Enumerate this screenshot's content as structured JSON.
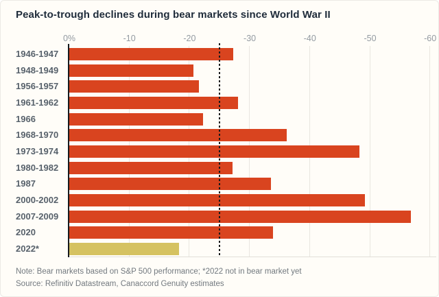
{
  "title": "Peak-to-trough declines during bear markets since World War II",
  "note": "Note: Bear markets based on S&P 500 performance; *2022 not in bear market yet",
  "source": "Source: Refinitiv Datastream, Canaccord Genuity estimates",
  "chart_data": {
    "type": "bar",
    "orientation": "horizontal",
    "title": "Peak-to-trough declines during bear markets since World War II",
    "categories": [
      "1946-1947",
      "1948-1949",
      "1956-1957",
      "1961-1962",
      "1966",
      "1968-1970",
      "1973-1974",
      "1980-1982",
      "1987",
      "2000-2002",
      "2007-2009",
      "2020",
      "2022*"
    ],
    "values": [
      -27.3,
      -20.6,
      -21.6,
      -28.0,
      -22.2,
      -36.1,
      -48.2,
      -27.1,
      -33.5,
      -49.1,
      -56.8,
      -33.9,
      -18.2
    ],
    "highlight_index": 12,
    "reference_line": -25.1,
    "x_ticks": [
      {
        "label": "0%",
        "value": 0
      },
      {
        "label": "-10",
        "value": -10
      },
      {
        "label": "-20",
        "value": -20
      },
      {
        "label": "-30",
        "value": -30
      },
      {
        "label": "-40",
        "value": -40
      },
      {
        "label": "-50",
        "value": -50
      },
      {
        "label": "-60",
        "value": -60
      }
    ],
    "x_range": [
      0,
      -60
    ],
    "grid": true,
    "legend": "none",
    "colors": {
      "bar": "#d9441f",
      "highlight_bar": "#d5c261",
      "reference_line": "#17191b",
      "axis_line": "#16191d",
      "gridline": "#e9e6e0",
      "tick_label": "#939aa1",
      "category_label": "#57616b",
      "title": "#1e2b3a",
      "note": "#72797f",
      "background": "#fffdf8"
    }
  }
}
